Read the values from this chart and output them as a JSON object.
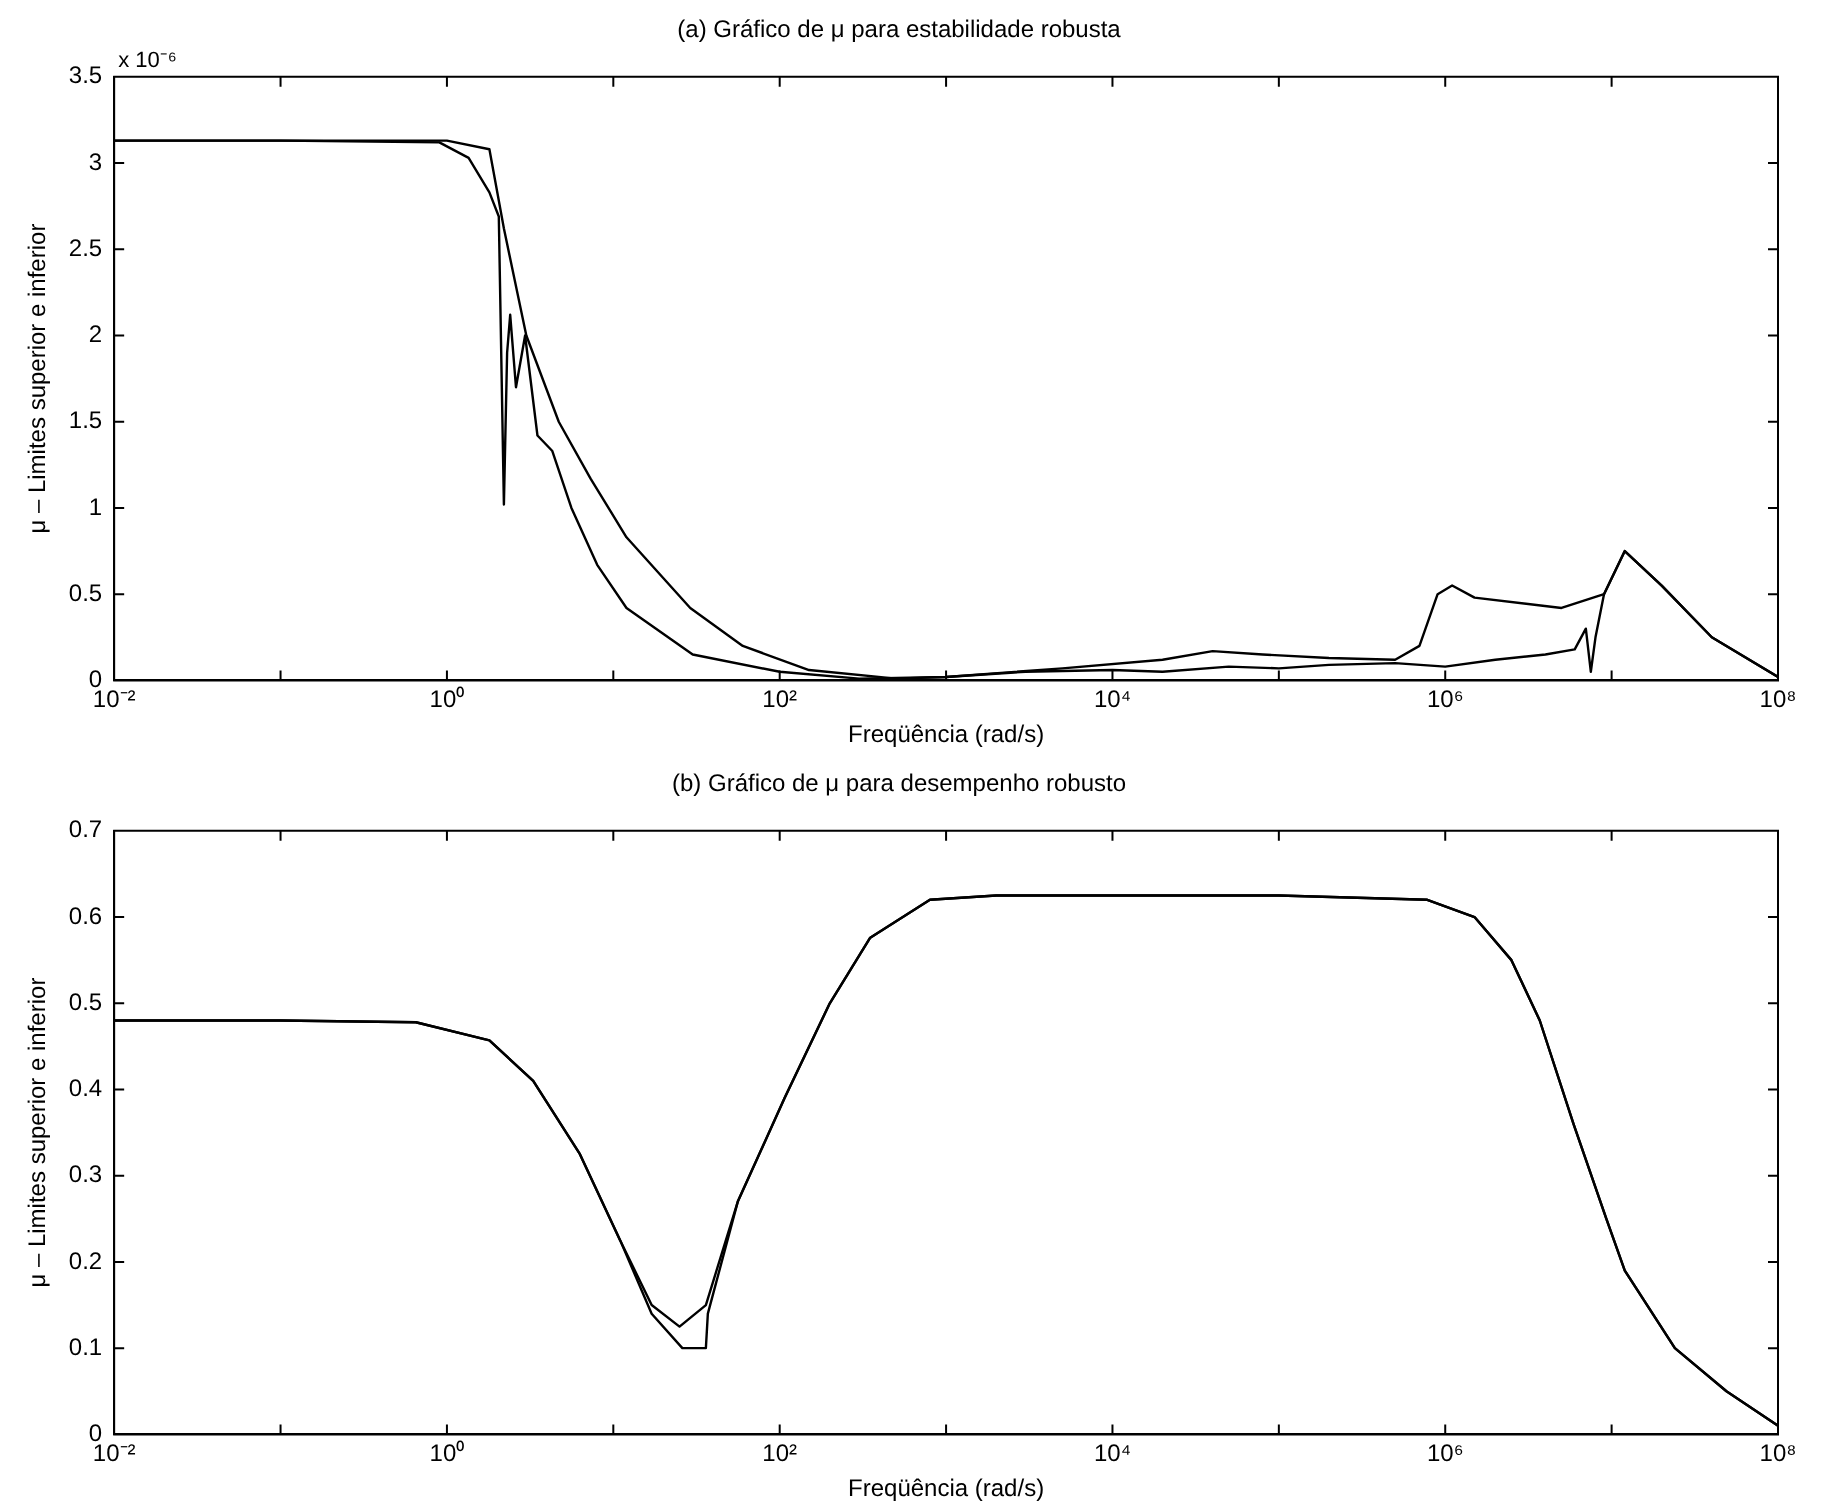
{
  "chart_data": [
    {
      "type": "line",
      "title": "(a) Gráfico de μ para estabilidade robusta",
      "xlabel": "Freqüência (rad/s)",
      "ylabel": "μ – Limites superior e inferior",
      "annotations": [
        "x 10⁻⁶"
      ],
      "log": "x",
      "grid": false,
      "legend": false,
      "marker": "none",
      "line_style": "solid",
      "xlim": [
        0.01,
        100000000
      ],
      "xticks": [
        {
          "value": 0.01,
          "label": "10⁻²"
        },
        {
          "value": 0.1,
          "label": null
        },
        {
          "value": 1,
          "label": "10⁰"
        },
        {
          "value": 10,
          "label": null
        },
        {
          "value": 100,
          "label": "10²"
        },
        {
          "value": 1000,
          "label": null
        },
        {
          "value": 10000,
          "label": "10⁴"
        },
        {
          "value": 100000,
          "label": null
        },
        {
          "value": 1000000,
          "label": "10⁶"
        },
        {
          "value": 10000000,
          "label": null
        },
        {
          "value": 100000000,
          "label": "10⁸"
        }
      ],
      "ylim": [
        0,
        3.5
      ],
      "yticks": [
        0,
        0.5,
        1,
        1.5,
        2,
        2.5,
        3,
        3.5
      ],
      "series": [
        {
          "color": "#000000",
          "x": [
            0.01,
            0.1,
            1,
            1.8,
            2.2,
            3,
            4.7,
            7.3,
            12,
            29,
            60,
            150,
            500,
            1000,
            5000,
            20000,
            40000,
            80000,
            200000,
            500000,
            700000,
            900000,
            1100000,
            1500000,
            5000000,
            9000000,
            12000000,
            20000000,
            40000000,
            100000000
          ],
          "values": [
            3.13,
            3.13,
            3.13,
            3.08,
            2.62,
            2.0,
            1.5,
            1.17,
            0.83,
            0.42,
            0.2,
            0.06,
            0.01,
            0.02,
            0.07,
            0.12,
            0.17,
            0.15,
            0.13,
            0.12,
            0.2,
            0.5,
            0.55,
            0.48,
            0.42,
            0.5,
            0.75,
            0.55,
            0.25,
            0.02
          ]
        },
        {
          "color": "#000000",
          "x": [
            0.01,
            0.1,
            0.9,
            1.35,
            1.8,
            2.05,
            2.2,
            2.3,
            2.4,
            2.6,
            2.95,
            3.5,
            4.3,
            5.6,
            8,
            12,
            30,
            100,
            300,
            1000,
            3000,
            10000,
            20000,
            50000,
            100000,
            200000,
            500000,
            1000000,
            2000000,
            4000000,
            6000000,
            7000000,
            7500000,
            8000000,
            9000000,
            12000000,
            20000000,
            40000000,
            100000000
          ],
          "values": [
            3.13,
            3.13,
            3.12,
            3.03,
            2.83,
            2.69,
            1.02,
            1.9,
            2.12,
            1.7,
            2.0,
            1.42,
            1.33,
            1.0,
            0.67,
            0.42,
            0.15,
            0.05,
            0.01,
            0.02,
            0.05,
            0.06,
            0.05,
            0.08,
            0.07,
            0.09,
            0.1,
            0.08,
            0.12,
            0.15,
            0.18,
            0.3,
            0.05,
            0.25,
            0.5,
            0.75,
            0.55,
            0.25,
            0.02
          ]
        }
      ]
    },
    {
      "type": "line",
      "title": "(b) Gráfico de μ para desempenho robusto",
      "xlabel": "Freqüência (rad/s)",
      "ylabel": "μ – Limites superior e inferior",
      "log": "x",
      "grid": false,
      "legend": false,
      "marker": "none",
      "line_style": "solid",
      "xlim": [
        0.01,
        100000000
      ],
      "xticks": [
        {
          "value": 0.01,
          "label": "10⁻²"
        },
        {
          "value": 0.1,
          "label": null
        },
        {
          "value": 1,
          "label": "10⁰"
        },
        {
          "value": 10,
          "label": null
        },
        {
          "value": 100,
          "label": "10²"
        },
        {
          "value": 1000,
          "label": null
        },
        {
          "value": 10000,
          "label": "10⁴"
        },
        {
          "value": 100000,
          "label": null
        },
        {
          "value": 1000000,
          "label": "10⁶"
        },
        {
          "value": 10000000,
          "label": null
        },
        {
          "value": 100000000,
          "label": "10⁸"
        }
      ],
      "ylim": [
        0,
        0.7
      ],
      "yticks": [
        0,
        0.1,
        0.2,
        0.3,
        0.4,
        0.5,
        0.6,
        0.7
      ],
      "series": [
        {
          "color": "#000000",
          "x": [
            0.01,
            0.1,
            0.65,
            1.8,
            3.3,
            6.3,
            11,
            17,
            25,
            36,
            56,
            107,
            200,
            350,
            800,
            2000,
            10000,
            100000,
            780000,
            1500000,
            2500000,
            3700000,
            5900000,
            9300000,
            12000000,
            24000000,
            49000000,
            100000000
          ],
          "values": [
            0.48,
            0.48,
            0.478,
            0.457,
            0.41,
            0.325,
            0.225,
            0.15,
            0.125,
            0.15,
            0.27,
            0.39,
            0.5,
            0.576,
            0.62,
            0.625,
            0.625,
            0.625,
            0.62,
            0.6,
            0.55,
            0.48,
            0.36,
            0.25,
            0.19,
            0.1,
            0.05,
            0.01
          ]
        },
        {
          "color": "#000000",
          "x": [
            0.01,
            0.1,
            0.65,
            1.8,
            3.3,
            6.3,
            11,
            17,
            26,
            36,
            37,
            56,
            107,
            200,
            350,
            800,
            2000,
            10000,
            100000,
            780000,
            1500000,
            2500000,
            3700000,
            5900000,
            9300000,
            12000000,
            24000000,
            49000000,
            100000000
          ],
          "values": [
            0.48,
            0.48,
            0.478,
            0.457,
            0.41,
            0.325,
            0.225,
            0.14,
            0.1,
            0.1,
            0.14,
            0.27,
            0.39,
            0.5,
            0.576,
            0.62,
            0.625,
            0.625,
            0.625,
            0.62,
            0.6,
            0.55,
            0.48,
            0.36,
            0.25,
            0.19,
            0.1,
            0.05,
            0.01
          ]
        }
      ]
    }
  ]
}
